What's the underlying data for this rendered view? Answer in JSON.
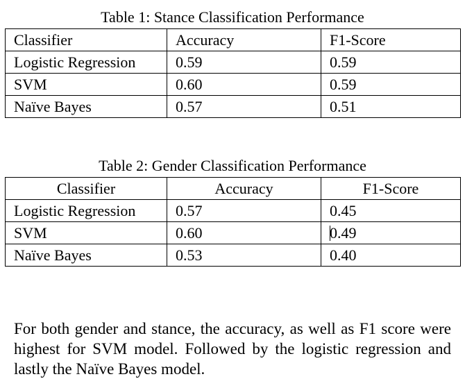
{
  "table1": {
    "caption": "Table 1: Stance Classification Performance",
    "headers": [
      "Classifier",
      "Accuracy",
      "F1-Score"
    ],
    "rows": [
      [
        "Logistic Regression",
        "0.59",
        "0.59"
      ],
      [
        "SVM",
        "0.60",
        "0.59"
      ],
      [
        "Naïve Bayes",
        "0.57",
        "0.51"
      ]
    ]
  },
  "table2": {
    "caption": "Table 2: Gender Classification Performance",
    "headers": [
      "Classifier",
      "Accuracy",
      "F1-Score"
    ],
    "rows": [
      [
        "Logistic Regression",
        "0.57",
        "0.45"
      ],
      [
        "SVM",
        "0.60",
        "0.49"
      ],
      [
        "Naïve Bayes",
        "0.53",
        "0.40"
      ]
    ]
  },
  "paragraph": "For both gender and stance, the accuracy, as well as F1 score were highest for SVM model. Followed by the logistic regression and lastly the Naïve Bayes model."
}
